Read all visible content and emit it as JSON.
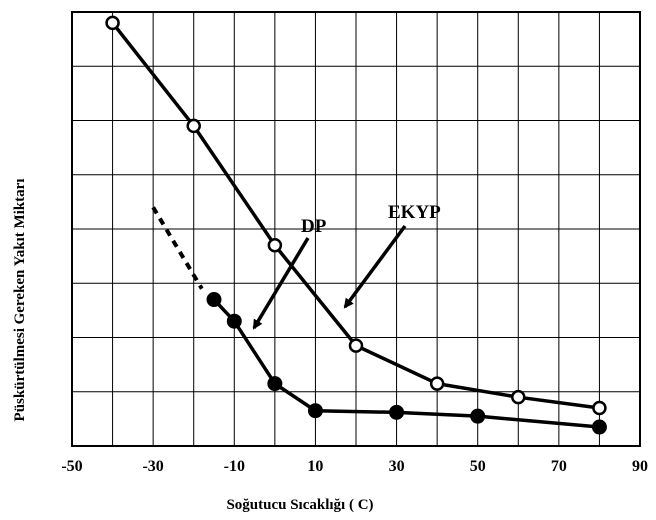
{
  "chart_data": {
    "type": "line",
    "xlabel": "Soğutucu Sıcaklığı ( C)",
    "ylabel": "Püskürtülmesi Gereken Yakıt Miktarı",
    "xlim": [
      -50,
      90
    ],
    "ylim": [
      0,
      8
    ],
    "x_ticks": [
      -50,
      -30,
      -10,
      10,
      30,
      50,
      70,
      90
    ],
    "x_tick_labels": [
      "-50",
      "-30",
      "-10",
      "10",
      "30",
      "50",
      "70",
      "90"
    ],
    "grid": true,
    "series": [
      {
        "name": "EKYP",
        "marker": "open-circle",
        "x": [
          -40,
          -20,
          0,
          20,
          40,
          60,
          80
        ],
        "y": [
          7.8,
          5.9,
          3.7,
          1.85,
          1.15,
          0.9,
          0.7
        ]
      },
      {
        "name": "DP",
        "marker": "filled-circle",
        "x": [
          -15,
          -10,
          0,
          10,
          30,
          50,
          80
        ],
        "y": [
          2.7,
          2.3,
          1.15,
          0.65,
          0.62,
          0.55,
          0.35
        ],
        "dashed_extension": {
          "x": [
            -30,
            -18
          ],
          "y": [
            4.4,
            2.9
          ]
        }
      }
    ],
    "annotations": [
      {
        "text": "DP",
        "points_to_series": "DP"
      },
      {
        "text": "EKYP",
        "points_to_series": "EKYP"
      }
    ]
  }
}
